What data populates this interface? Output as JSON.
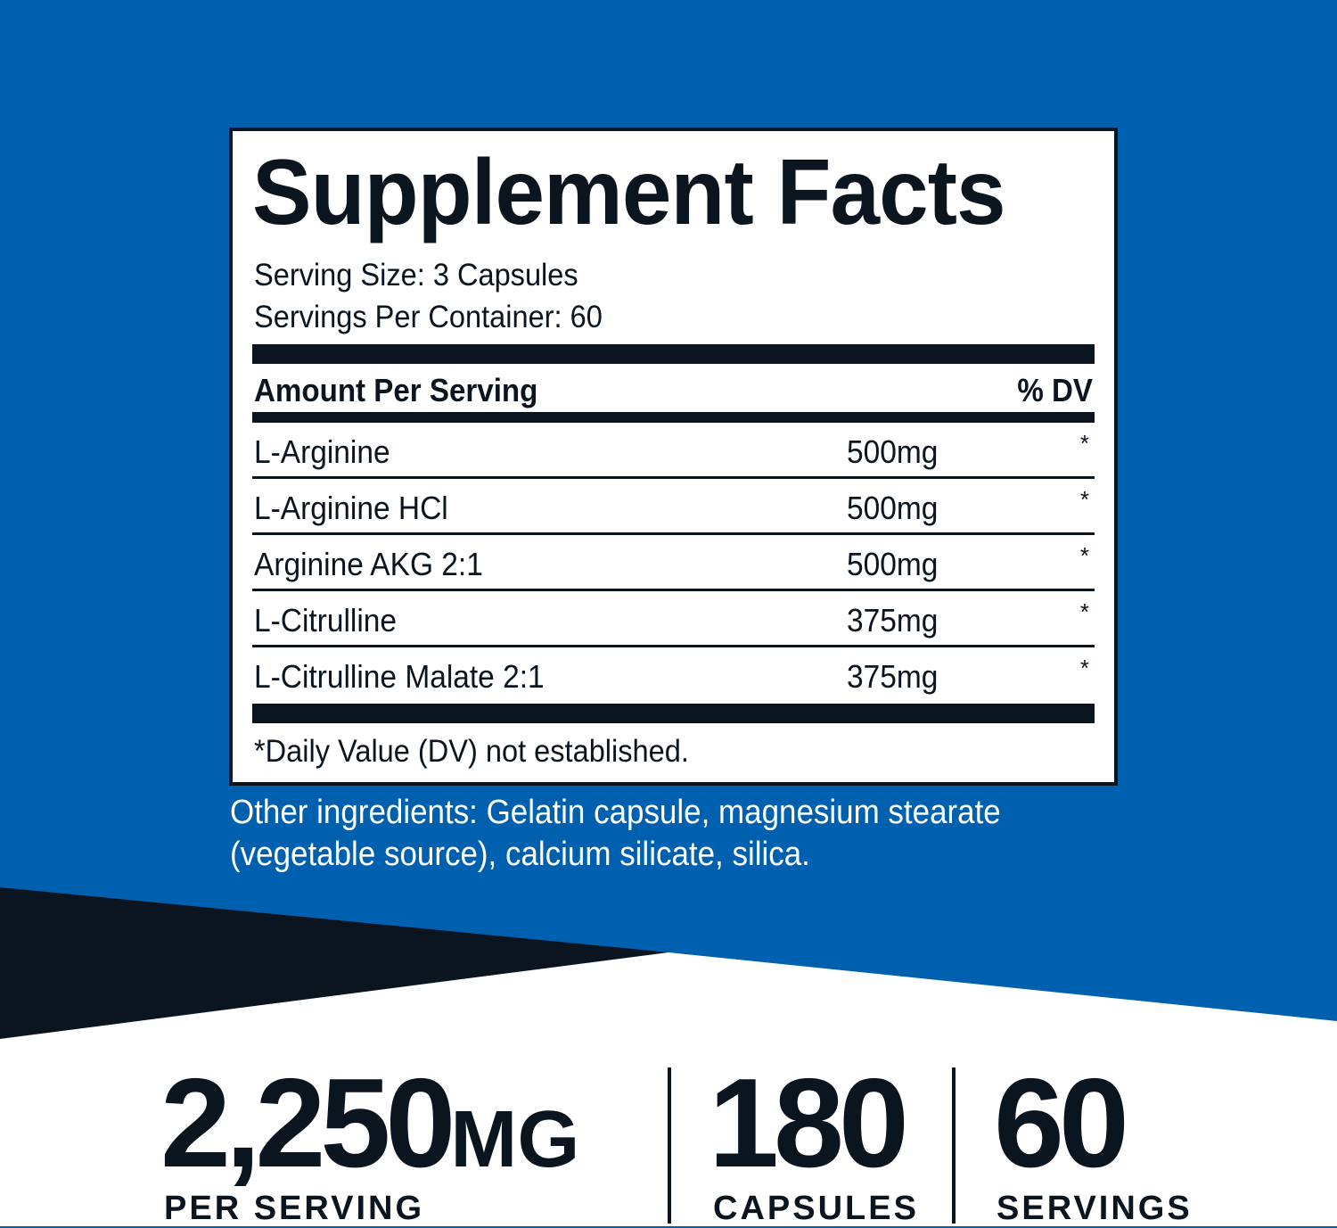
{
  "colors": {
    "brand_blue": "#0060b0",
    "dark_navy": "#0b1520",
    "white": "#ffffff"
  },
  "label": {
    "title": "Supplement Facts",
    "serving_size": "Serving Size: 3 Capsules",
    "servings_per_container": "Servings Per Container: 60",
    "amount_header": "Amount Per Serving",
    "dv_header": "% DV",
    "rows": [
      {
        "name": "L-Arginine",
        "amount": "500mg",
        "dv": "*"
      },
      {
        "name": "L-Arginine HCl",
        "amount": "500mg",
        "dv": "*"
      },
      {
        "name": "Arginine AKG 2:1",
        "amount": "500mg",
        "dv": "*"
      },
      {
        "name": "L-Citrulline",
        "amount": "375mg",
        "dv": "*"
      },
      {
        "name": "L-Citrulline Malate 2:1",
        "amount": "375mg",
        "dv": "*"
      }
    ],
    "footnote": "*Daily Value (DV) not established."
  },
  "other_ingredients": "Other ingredients: Gelatin capsule, magnesium stearate (vegetable source), calcium silicate, silica.",
  "stats": [
    {
      "value": "2,250",
      "unit": "MG",
      "caption": "PER SERVING"
    },
    {
      "value": "180",
      "caption": "CAPSULES"
    },
    {
      "value": "60",
      "caption": "SERVINGS"
    }
  ]
}
